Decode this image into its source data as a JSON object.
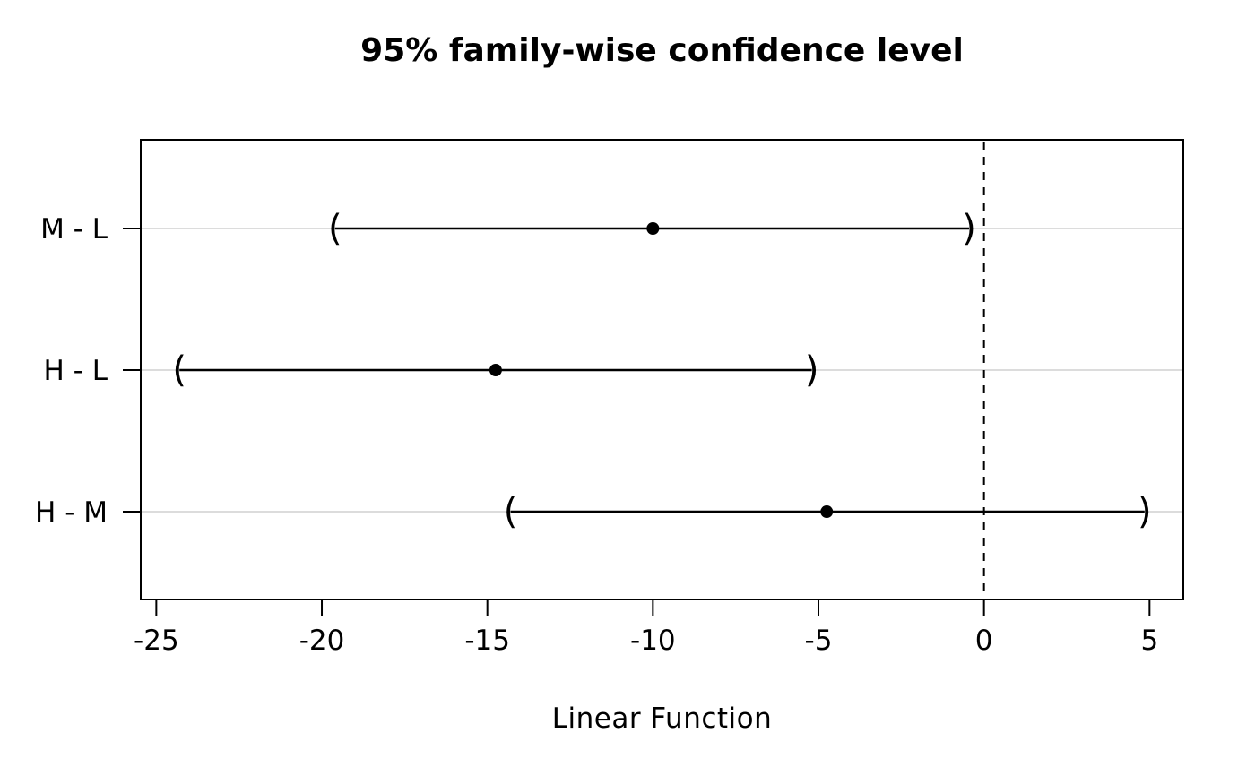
{
  "chart_data": {
    "type": "ci_interval",
    "title": "95% family-wise confidence level",
    "xlabel": "Linear Function",
    "ylabel": "",
    "categories": [
      "M - L",
      "H - L",
      "H - M"
    ],
    "series": [
      {
        "name": "M - L",
        "estimate": -10.0,
        "lower": -19.6,
        "upper": -0.45
      },
      {
        "name": "H - L",
        "estimate": -14.75,
        "lower": -24.3,
        "upper": -5.2
      },
      {
        "name": "H - M",
        "estimate": -4.75,
        "lower": -14.3,
        "upper": 4.85
      }
    ],
    "x_ticks": [
      -25,
      -20,
      -15,
      -10,
      -5,
      0,
      5
    ],
    "xlim": [
      -25.47,
      6.02
    ],
    "reference_line_x": 0,
    "grid": "horizontal-light",
    "legend": "none",
    "cap_style": "parentheses",
    "cap_open": "(",
    "cap_close": ")",
    "colors": {
      "interval": "#000000",
      "grid": "#dcdcdc",
      "reference_line": "#000000",
      "border": "#000000",
      "text": "#000000",
      "background": "#ffffff"
    }
  }
}
